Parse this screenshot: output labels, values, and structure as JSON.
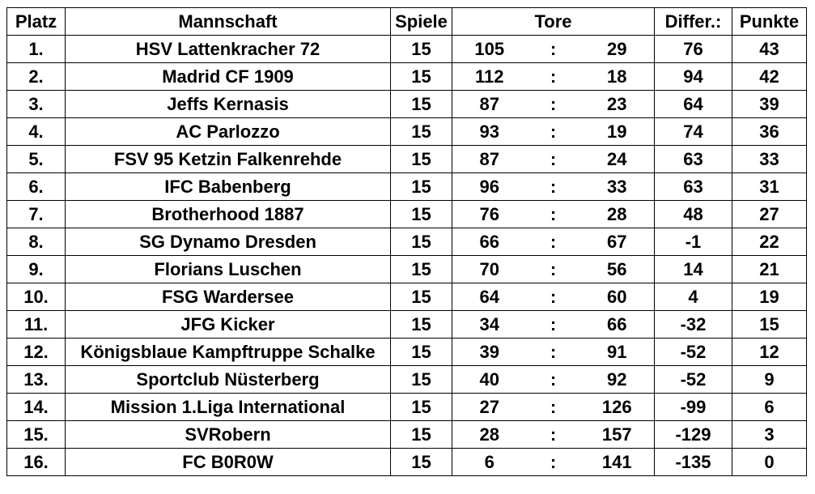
{
  "headers": {
    "platz": "Platz",
    "mannschaft": "Mannschaft",
    "spiele": "Spiele",
    "tore": "Tore",
    "differenz": "Differ.:",
    "punkte": "Punkte"
  },
  "colors": {
    "positive_diff": "#17a34a",
    "negative_diff": "#e81919",
    "text": "#000000",
    "border": "#000000",
    "background": "#ffffff"
  },
  "rows": [
    {
      "platz": "1.",
      "team": "HSV Lattenkracher 72",
      "spiele": "15",
      "tore_for": "105",
      "colon": ":",
      "tore_against": "29",
      "diff": "76",
      "punkte": "43"
    },
    {
      "platz": "2.",
      "team": "Madrid CF 1909",
      "spiele": "15",
      "tore_for": "112",
      "colon": ":",
      "tore_against": "18",
      "diff": "94",
      "punkte": "42"
    },
    {
      "platz": "3.",
      "team": "Jeffs Kernasis",
      "spiele": "15",
      "tore_for": "87",
      "colon": ":",
      "tore_against": "23",
      "diff": "64",
      "punkte": "39"
    },
    {
      "platz": "4.",
      "team": "AC Parlozzo",
      "spiele": "15",
      "tore_for": "93",
      "colon": ":",
      "tore_against": "19",
      "diff": "74",
      "punkte": "36"
    },
    {
      "platz": "5.",
      "team": "FSV 95 Ketzin Falkenrehde",
      "spiele": "15",
      "tore_for": "87",
      "colon": ":",
      "tore_against": "24",
      "diff": "63",
      "punkte": "33"
    },
    {
      "platz": "6.",
      "team": "IFC Babenberg",
      "spiele": "15",
      "tore_for": "96",
      "colon": ":",
      "tore_against": "33",
      "diff": "63",
      "punkte": "31"
    },
    {
      "platz": "7.",
      "team": "Brotherhood 1887",
      "spiele": "15",
      "tore_for": "76",
      "colon": ":",
      "tore_against": "28",
      "diff": "48",
      "punkte": "27"
    },
    {
      "platz": "8.",
      "team": "SG Dynamo Dresden",
      "spiele": "15",
      "tore_for": "66",
      "colon": ":",
      "tore_against": "67",
      "diff": "-1",
      "punkte": "22"
    },
    {
      "platz": "9.",
      "team": "Florians Luschen",
      "spiele": "15",
      "tore_for": "70",
      "colon": ":",
      "tore_against": "56",
      "diff": "14",
      "punkte": "21"
    },
    {
      "platz": "10.",
      "team": "FSG Wardersee",
      "spiele": "15",
      "tore_for": "64",
      "colon": ":",
      "tore_against": "60",
      "diff": "4",
      "punkte": "19"
    },
    {
      "platz": "11.",
      "team": "JFG Kicker",
      "spiele": "15",
      "tore_for": "34",
      "colon": ":",
      "tore_against": "66",
      "diff": "-32",
      "punkte": "15"
    },
    {
      "platz": "12.",
      "team": "Königsblaue Kampftruppe Schalke",
      "spiele": "15",
      "tore_for": "39",
      "colon": ":",
      "tore_against": "91",
      "diff": "-52",
      "punkte": "12"
    },
    {
      "platz": "13.",
      "team": "Sportclub Nüsterberg",
      "spiele": "15",
      "tore_for": "40",
      "colon": ":",
      "tore_against": "92",
      "diff": "-52",
      "punkte": "9"
    },
    {
      "platz": "14.",
      "team": "Mission 1.Liga International",
      "spiele": "15",
      "tore_for": "27",
      "colon": ":",
      "tore_against": "126",
      "diff": "-99",
      "punkte": "6"
    },
    {
      "platz": "15.",
      "team": "SVRobern",
      "spiele": "15",
      "tore_for": "28",
      "colon": ":",
      "tore_against": "157",
      "diff": "-129",
      "punkte": "3"
    },
    {
      "platz": "16.",
      "team": "FC B0R0W",
      "spiele": "15",
      "tore_for": "6",
      "colon": ":",
      "tore_against": "141",
      "diff": "-135",
      "punkte": "0"
    }
  ]
}
